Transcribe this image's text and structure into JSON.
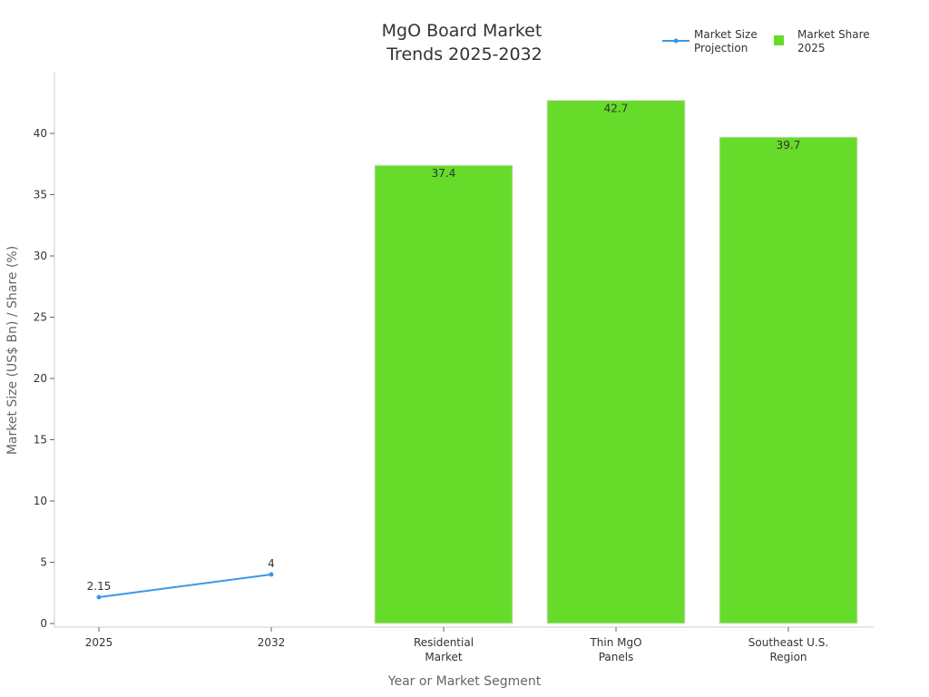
{
  "chart_data": {
    "type": "bar",
    "title": [
      "MgO Board Market",
      "Trends 2025-2032"
    ],
    "xlabel": "Year or Market Segment",
    "ylabel": "Market Size (US$ Bn) / Share (%)",
    "categories": [
      [
        "2025"
      ],
      [
        "2032"
      ],
      [
        "Residential",
        "Market"
      ],
      [
        "Thin MgO",
        "Panels"
      ],
      [
        "Southeast U.S.",
        "Region"
      ]
    ],
    "ylim": [
      0,
      44.8
    ],
    "yticks": [
      0,
      5,
      10,
      15,
      20,
      25,
      30,
      35,
      40
    ],
    "grid": false,
    "legend_position": "top-right",
    "series": [
      {
        "name": [
          "Market Size",
          "Projection"
        ],
        "type": "line",
        "color": "#3b97e3",
        "points": [
          {
            "x": "2025",
            "y": 2.15,
            "label": "2.15"
          },
          {
            "x": "2032",
            "y": 4,
            "label": "4"
          }
        ]
      },
      {
        "name": [
          "Market Share",
          "2025"
        ],
        "type": "bar",
        "color": "#66db29",
        "points": [
          {
            "x": "Residential Market",
            "y": 37.4,
            "label": "37.4"
          },
          {
            "x": "Thin MgO Panels",
            "y": 42.7,
            "label": "42.7"
          },
          {
            "x": "Southeast U.S. Region",
            "y": 39.7,
            "label": "39.7"
          }
        ]
      }
    ]
  }
}
